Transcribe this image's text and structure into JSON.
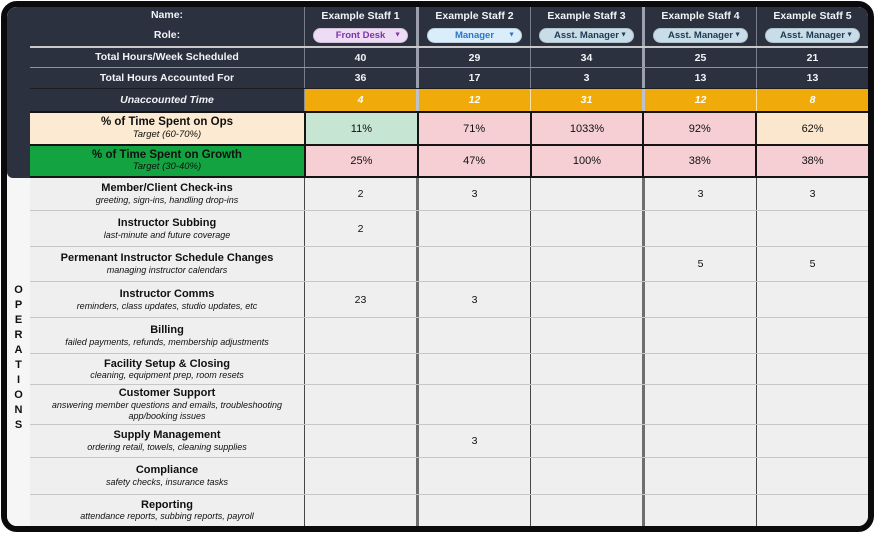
{
  "header": {
    "name_label": "Name:",
    "role_label": "Role:",
    "staff": [
      {
        "name": "Example Staff 1",
        "role": "Front Desk",
        "pill_bg": "#eedcf6",
        "pill_text": "#7a35a8"
      },
      {
        "name": "Example Staff 2",
        "role": "Manager",
        "pill_bg": "#d9edfb",
        "pill_text": "#2e74c9"
      },
      {
        "name": "Example Staff 3",
        "role": "Asst. Manager",
        "pill_bg": "#c9dde8",
        "pill_text": "#1d3a52"
      },
      {
        "name": "Example Staff 4",
        "role": "Asst. Manager",
        "pill_bg": "#c9dde8",
        "pill_text": "#1d3a52"
      },
      {
        "name": "Example Staff 5",
        "role": "Asst. Manager",
        "pill_bg": "#c9dde8",
        "pill_text": "#1d3a52"
      }
    ]
  },
  "summary_rows": [
    {
      "label": "Total Hours/Week Scheduled",
      "values": [
        "40",
        "29",
        "34",
        "25",
        "21"
      ]
    },
    {
      "label": "Total Hours Accounted For",
      "values": [
        "36",
        "17",
        "3",
        "13",
        "13"
      ]
    },
    {
      "label": "Unaccounted Time",
      "values": [
        "4",
        "12",
        "31",
        "12",
        "8"
      ]
    }
  ],
  "percent_rows": [
    {
      "label": "% of Time Spent on Ops",
      "target": "Target (60-70%)",
      "label_bg": "#fcead2",
      "values": [
        {
          "text": "11%",
          "bg": "#c6e5d2"
        },
        {
          "text": "71%",
          "bg": "#f5cfd3"
        },
        {
          "text": "1033%",
          "bg": "#f5cfd3"
        },
        {
          "text": "92%",
          "bg": "#f5cfd3"
        },
        {
          "text": "62%",
          "bg": "#fbe7cd"
        }
      ]
    },
    {
      "label": "% of Time Spent on Growth",
      "target": "Target (30-40%)",
      "label_bg": "#13a441",
      "values": [
        {
          "text": "25%",
          "bg": "#f5cfd3"
        },
        {
          "text": "47%",
          "bg": "#f5cfd3"
        },
        {
          "text": "100%",
          "bg": "#f5cfd3"
        },
        {
          "text": "38%",
          "bg": "#f5cfd3"
        },
        {
          "text": "38%",
          "bg": "#f5cfd3"
        }
      ]
    }
  ],
  "section_label": "OPERATIONS",
  "tasks": [
    {
      "title": "Member/Client Check-ins",
      "desc": "greeting, sign-ins, handling drop-ins",
      "values": [
        "2",
        "3",
        "",
        "3",
        "3"
      ],
      "h": 31
    },
    {
      "title": "Instructor Subbing",
      "desc": "last-minute and future coverage",
      "values": [
        "2",
        "",
        "",
        "",
        ""
      ],
      "h": 35
    },
    {
      "title": "Permenant Instructor Schedule Changes",
      "desc": "managing instructor calendars",
      "values": [
        "",
        "",
        "",
        "5",
        "5"
      ],
      "h": 34
    },
    {
      "title": "Instructor Comms",
      "desc": "reminders, class updates, studio updates, etc",
      "values": [
        "23",
        "3",
        "",
        "",
        ""
      ],
      "h": 35
    },
    {
      "title": "Billing",
      "desc": "failed payments, refunds, membership adjustments",
      "values": [
        "",
        "",
        "",
        "",
        ""
      ],
      "h": 35
    },
    {
      "title": "Facility Setup & Closing",
      "desc": "cleaning, equipment prep, room resets",
      "values": [
        "",
        "",
        "",
        "",
        ""
      ],
      "h": 30
    },
    {
      "title": "Customer Support",
      "desc": "answering member questions and emails, troubleshooting app/booking issues",
      "values": [
        "",
        "",
        "",
        "",
        ""
      ],
      "h": 38
    },
    {
      "title": "Supply Management",
      "desc": "ordering retail, towels, cleaning supplies",
      "values": [
        "",
        "3",
        "",
        "",
        ""
      ],
      "h": 32
    },
    {
      "title": "Compliance",
      "desc": "safety checks, insurance tasks",
      "values": [
        "",
        "",
        "",
        "",
        ""
      ],
      "h": 36
    },
    {
      "title": "Reporting",
      "desc": "attendance reports, subbing reports, payroll",
      "values": [
        "",
        "",
        "",
        "",
        ""
      ],
      "h": 31
    }
  ],
  "colors": {
    "header_bg": "#2c3140",
    "unaccounted_bg": "#f0ab0a",
    "task_area_bg": "#efeff0",
    "card_border": "#0b0b0e"
  },
  "icons": {
    "role_dropdown_arrow": "▼"
  }
}
